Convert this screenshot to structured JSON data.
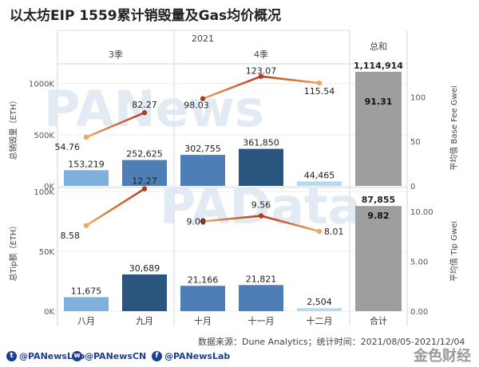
{
  "title": "以太坊EIP 1559累计销毁量及Gas均价概况",
  "header": {
    "year": "2021",
    "q3": "3季",
    "q4": "4季",
    "total": "总和"
  },
  "watermarks": [
    "PANews",
    "PAData"
  ],
  "source": "数据来源：Dune Analytics；统计时间：2021/08/05-2021/12/04",
  "social": {
    "twitter": "@PANewsLab",
    "weibo": "@PANewsCN",
    "facebook": "@PANewsLab"
  },
  "logo_text": "金色财经",
  "colors": {
    "bar_light": "#7fb0db",
    "bar_mid": "#4d7eb6",
    "bar_dark": "#2a557f",
    "bar_pale": "#b9d9ef",
    "bar_total": "#9e9e9e",
    "line_dark": "#b23a1d",
    "line_light": "#f0a860",
    "watermark": "#dfe8f3"
  },
  "chart_data": [
    {
      "type": "bar",
      "categories": [
        "八月",
        "九月",
        "十月",
        "十一月",
        "十二月"
      ],
      "ylabel": "总销毁量（ETH）",
      "y2label": "平均值 Base Fee Gwei",
      "y_ticks": [
        "0K",
        "500K",
        "1000K"
      ],
      "y2_ticks": [
        "0",
        "50",
        "100"
      ],
      "ylim": [
        0,
        1130000
      ],
      "y2lim": [
        0,
        130
      ],
      "series": [
        {
          "values": [
            153219,
            252625,
            302755,
            361850,
            44465
          ],
          "labels": [
            "153,219",
            "252,625",
            "302,755",
            "361,850",
            "44,465"
          ]
        },
        {
          "values": [
            54.76,
            82.27,
            98.03,
            123.07,
            115.54
          ],
          "labels": [
            "54.76",
            "82.27",
            "98.03",
            "123.07",
            "115.54"
          ]
        }
      ],
      "total": {
        "category": "合计",
        "value": 1114914,
        "label": "1,114,914",
        "avg": 91.31,
        "avg_label": "91.31"
      }
    },
    {
      "type": "bar",
      "categories": [
        "八月",
        "九月",
        "十月",
        "十一月",
        "十二月"
      ],
      "ylabel": "总Tip额（ETH）",
      "y2label": "平均值 Tip Gwei",
      "y_ticks": [
        "0K",
        "50K",
        "100K"
      ],
      "y2_ticks": [
        "0.00",
        "5.00",
        "10.00"
      ],
      "ylim": [
        0,
        100000
      ],
      "y2lim": [
        0,
        12
      ],
      "series": [
        {
          "values": [
            11675,
            30689,
            21166,
            21821,
            2504
          ],
          "labels": [
            "11,675",
            "30,689",
            "21,166",
            "21,821",
            "2,504"
          ]
        },
        {
          "values": [
            8.58,
            12.27,
            9.0,
            9.56,
            8.01
          ],
          "labels": [
            "8.58",
            "12.27",
            "9.00",
            "9.56",
            "8.01"
          ]
        }
      ],
      "total": {
        "category": "合计",
        "value": 87855,
        "label": "87,855",
        "avg": 9.82,
        "avg_label": "9.82"
      }
    }
  ]
}
